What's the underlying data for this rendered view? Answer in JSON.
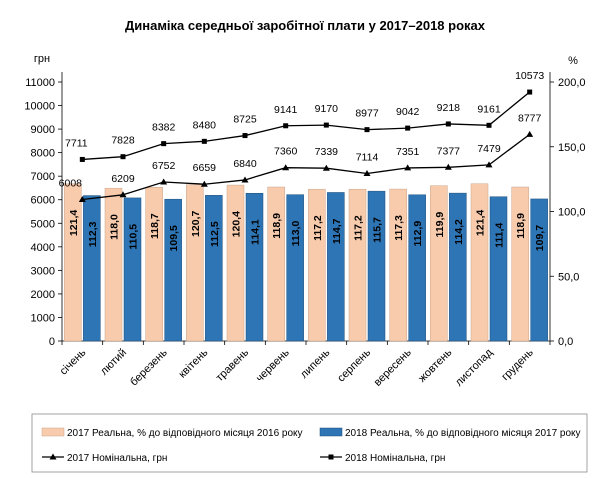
{
  "chart_data": {
    "type": "bar",
    "title": "Динаміка середньої заробітної плати у 2017–2018 роках",
    "y_left_unit": "грн",
    "y_right_unit": "%",
    "ylim_left": [
      0,
      11000
    ],
    "ylim_right": [
      0,
      200
    ],
    "y_left_ticks": [
      "0",
      "1000",
      "2000",
      "3000",
      "4000",
      "5000",
      "6000",
      "7000",
      "8000",
      "9000",
      "10000",
      "11000"
    ],
    "y_right_ticks": [
      "0,0",
      "50,0",
      "100,0",
      "150,0",
      "200,0"
    ],
    "categories": [
      "січень",
      "лютий",
      "березень",
      "квітень",
      "травень",
      "червень",
      "липень",
      "серпень",
      "вересень",
      "жовтень",
      "листопад",
      "грудень"
    ],
    "bar_series": [
      {
        "name": "2017 Реальна, % до відповідного місяця 2016 року",
        "color": "#f8cbad",
        "values": [
          121.4,
          118.0,
          118.7,
          120.7,
          120.4,
          118.9,
          117.2,
          117.2,
          117.3,
          119.9,
          121.4,
          118.9
        ],
        "labels": [
          "121,4",
          "118,0",
          "118,7",
          "120,7",
          "120,4",
          "118,9",
          "117,2",
          "117,2",
          "117,3",
          "119,9",
          "121,4",
          "118,9"
        ]
      },
      {
        "name": "2018 Реальна, % до відповідного місяця 2017 року",
        "color": "#2e75b6",
        "values": [
          112.3,
          110.5,
          109.5,
          112.5,
          114.1,
          113.0,
          114.7,
          115.7,
          112.9,
          114.2,
          111.4,
          109.7
        ],
        "labels": [
          "112,3",
          "110,5",
          "109,5",
          "112,5",
          "114,1",
          "113,0",
          "114,7",
          "115,7",
          "112,9",
          "114,2",
          "111,4",
          "109,7"
        ]
      }
    ],
    "line_series": [
      {
        "name": "2017 Номінальна, грн",
        "marker": "triangle",
        "values": [
          6008,
          6209,
          6752,
          6659,
          6840,
          7360,
          7339,
          7114,
          7351,
          7377,
          7479,
          8777
        ],
        "labels": [
          "6008",
          "6209",
          "6752",
          "6659",
          "6840",
          "7360",
          "7339",
          "7114",
          "7351",
          "7377",
          "7479",
          "8777"
        ]
      },
      {
        "name": "2018 Номінальна, грн",
        "marker": "square",
        "values": [
          7711,
          7828,
          8382,
          8480,
          8725,
          9141,
          9170,
          8977,
          9042,
          9218,
          9161,
          10573
        ],
        "labels": [
          "7711",
          "7828",
          "8382",
          "8480",
          "8725",
          "9141",
          "9170",
          "8977",
          "9042",
          "9218",
          "9161",
          "10573"
        ]
      }
    ],
    "grid": false,
    "legend_position": "bottom"
  }
}
